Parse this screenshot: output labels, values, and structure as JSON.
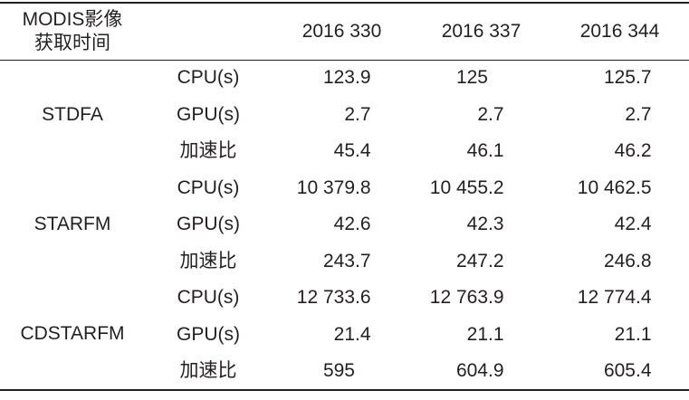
{
  "colors": {
    "text": "#231f20",
    "rule": "#231f20",
    "background": "#ffffff"
  },
  "table": {
    "header": {
      "col1_line1": "MODIS影像",
      "col1_line2": "获取时间",
      "dates": [
        "2016 330",
        "2016 337",
        "2016 344"
      ]
    },
    "groups": [
      {
        "method": "STDFA",
        "rows": [
          {
            "metric": "CPU(s)",
            "values": [
              "123.9",
              "125",
              "125.7"
            ]
          },
          {
            "metric": "GPU(s)",
            "values": [
              "2.7",
              "2.7",
              "2.7"
            ]
          },
          {
            "metric": "加速比",
            "values": [
              "45.4",
              "46.1",
              "46.2"
            ]
          }
        ]
      },
      {
        "method": "STARFM",
        "rows": [
          {
            "metric": "CPU(s)",
            "values": [
              "10 379.8",
              "10 455.2",
              "10 462.5"
            ]
          },
          {
            "metric": "GPU(s)",
            "values": [
              "42.6",
              "42.3",
              "42.4"
            ]
          },
          {
            "metric": "加速比",
            "values": [
              "243.7",
              "247.2",
              "246.8"
            ]
          }
        ]
      },
      {
        "method": "CDSTARFM",
        "rows": [
          {
            "metric": "CPU(s)",
            "values": [
              "12 733.6",
              "12 763.9",
              "12 774.4"
            ]
          },
          {
            "metric": "GPU(s)",
            "values": [
              "21.4",
              "21.1",
              "21.1"
            ]
          },
          {
            "metric": "加速比",
            "values": [
              "595",
              "604.9",
              "605.4"
            ]
          }
        ]
      }
    ]
  },
  "chart_data": {
    "type": "table",
    "title": "",
    "row_header": "MODIS影像获取时间",
    "columns": [
      "2016 330",
      "2016 337",
      "2016 344"
    ],
    "rows": [
      {
        "method": "STDFA",
        "metric": "CPU(s)",
        "values": [
          123.9,
          125,
          125.7
        ]
      },
      {
        "method": "STDFA",
        "metric": "GPU(s)",
        "values": [
          2.7,
          2.7,
          2.7
        ]
      },
      {
        "method": "STDFA",
        "metric": "加速比",
        "values": [
          45.4,
          46.1,
          46.2
        ]
      },
      {
        "method": "STARFM",
        "metric": "CPU(s)",
        "values": [
          10379.8,
          10455.2,
          10462.5
        ]
      },
      {
        "method": "STARFM",
        "metric": "GPU(s)",
        "values": [
          42.6,
          42.3,
          42.4
        ]
      },
      {
        "method": "STARFM",
        "metric": "加速比",
        "values": [
          243.7,
          247.2,
          246.8
        ]
      },
      {
        "method": "CDSTARFM",
        "metric": "CPU(s)",
        "values": [
          12733.6,
          12763.9,
          12774.4
        ]
      },
      {
        "method": "CDSTARFM",
        "metric": "GPU(s)",
        "values": [
          21.4,
          21.1,
          21.1
        ]
      },
      {
        "method": "CDSTARFM",
        "metric": "加速比",
        "values": [
          595,
          604.9,
          605.4
        ]
      }
    ]
  }
}
